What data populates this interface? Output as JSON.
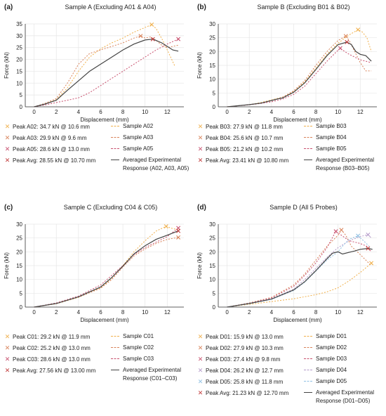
{
  "chart_data": [
    {
      "id": "a",
      "type": "line",
      "panel_label": "(a)",
      "title": "Sample A (Excluding A01 & A04)",
      "xlabel": "Displacement (mm)",
      "ylabel": "Force (kN)",
      "xlim": [
        -0.8,
        13.5
      ],
      "ylim": [
        0,
        35
      ],
      "xticks": [
        0,
        2,
        4,
        6,
        8,
        10,
        12
      ],
      "yticks": [
        0,
        5,
        10,
        15,
        20,
        25,
        30,
        35
      ],
      "series": [
        {
          "name": "Sample A02",
          "color": "#f0b04c",
          "dash": "2,2",
          "x": [
            0,
            1,
            2,
            3,
            4,
            5,
            6,
            7,
            8,
            9,
            10,
            10.6,
            11,
            11.6,
            12.2,
            12.7
          ],
          "y": [
            0,
            1.2,
            3,
            8,
            15,
            21,
            24.5,
            27,
            29,
            31.5,
            33.5,
            34.7,
            33,
            28,
            22,
            17
          ]
        },
        {
          "name": "Sample A03",
          "color": "#d9835a",
          "dash": "2,2",
          "x": [
            0,
            1,
            2,
            3,
            4,
            5,
            6,
            7,
            8,
            9,
            9.6,
            10,
            10.5,
            11,
            11.5,
            12,
            12.5,
            13
          ],
          "y": [
            0,
            1.5,
            3.5,
            10,
            18,
            22.5,
            24,
            25.5,
            27,
            29,
            29.9,
            29,
            29.5,
            28,
            26,
            25,
            25.5,
            26
          ]
        },
        {
          "name": "Sample A05",
          "color": "#c8506e",
          "dash": "2,2",
          "x": [
            0,
            1,
            2,
            3,
            4,
            5,
            6,
            7,
            8,
            9,
            10,
            11,
            12,
            13
          ],
          "y": [
            0,
            0.8,
            1.8,
            2.8,
            3.8,
            6,
            9,
            12,
            15,
            18,
            21,
            24,
            26.5,
            28.6
          ]
        },
        {
          "name": "Averaged Experimental Response (A02, A03, A05)",
          "color": "#444444",
          "dash": "",
          "x": [
            0,
            1,
            2,
            3,
            4,
            5,
            6,
            7,
            8,
            9,
            10,
            10.7,
            11,
            11.5,
            12,
            12.5,
            13
          ],
          "y": [
            0,
            1.2,
            2.8,
            7,
            11,
            15,
            18,
            21,
            24,
            26.5,
            28.2,
            28.55,
            28,
            27,
            25.5,
            24,
            23.5
          ]
        }
      ],
      "peaks": [
        {
          "label": "Peak A02: 34.7 kN @ 10.6 mm",
          "x": 10.6,
          "y": 34.7,
          "color": "#f0b04c"
        },
        {
          "label": "Peak A03: 29.9 kN @ 9.6 mm",
          "x": 9.6,
          "y": 29.9,
          "color": "#d9835a"
        },
        {
          "label": "Peak A05: 28.6 kN @ 13.0 mm",
          "x": 13.0,
          "y": 28.6,
          "color": "#c8506e"
        },
        {
          "label": "Peak Avg: 28.55 kN @ 10.70 mm",
          "x": 10.7,
          "y": 28.55,
          "color": "#c23b3b"
        }
      ],
      "legend_series_labels": [
        [
          "Sample A02"
        ],
        [
          "Sample A03"
        ],
        [
          "Sample A05"
        ],
        [
          "Averaged Experimental",
          "Response (A02, A03, A05)"
        ]
      ]
    },
    {
      "id": "b",
      "type": "line",
      "panel_label": "(b)",
      "title": "Sample B (Excluding B01 & B02)",
      "xlabel": "Displacement (mm)",
      "ylabel": "Force (kN)",
      "xlim": [
        -0.8,
        13.5
      ],
      "ylim": [
        0,
        30
      ],
      "xticks": [
        0,
        2,
        4,
        6,
        8,
        10,
        12
      ],
      "yticks": [
        0,
        5,
        10,
        15,
        20,
        25,
        30
      ],
      "series": [
        {
          "name": "Sample B03",
          "color": "#f0b04c",
          "dash": "2,2",
          "x": [
            0,
            2,
            3,
            4,
            5,
            6,
            7,
            8,
            9,
            10,
            10.5,
            11,
            11.8,
            12.2,
            12.6,
            13
          ],
          "y": [
            0,
            0.8,
            1.5,
            2.5,
            3.5,
            5.5,
            9,
            14,
            19,
            23,
            24.5,
            26,
            27.9,
            27,
            25,
            20
          ]
        },
        {
          "name": "Sample B04",
          "color": "#d9835a",
          "dash": "2,2",
          "x": [
            0,
            2,
            3,
            4,
            5,
            6,
            7,
            8,
            9,
            10,
            10.7,
            11,
            11.5,
            12,
            12.5,
            13
          ],
          "y": [
            0,
            0.8,
            1.3,
            2.2,
            3.5,
            5.8,
            9.5,
            15,
            20,
            24,
            25.6,
            24,
            20,
            16,
            13,
            13
          ]
        },
        {
          "name": "Sample B05",
          "color": "#c8506e",
          "dash": "2,2",
          "x": [
            0,
            2,
            3,
            4,
            5,
            6,
            7,
            8,
            9,
            10,
            10.2,
            10.6,
            11,
            11.5,
            12,
            12.5,
            13
          ],
          "y": [
            0,
            0.7,
            1.2,
            1.8,
            2.8,
            4.5,
            7.5,
            12,
            16.5,
            20.5,
            21.2,
            20,
            19,
            18,
            17,
            16.5,
            16
          ]
        },
        {
          "name": "Averaged Experimental Response (B03–B05)",
          "color": "#444444",
          "dash": "",
          "x": [
            0,
            2,
            3,
            4,
            4.5,
            5,
            6,
            7,
            8,
            9,
            10,
            10.8,
            11.2,
            11.6,
            12,
            12.5,
            13
          ],
          "y": [
            0,
            0.8,
            1.3,
            2.3,
            2.8,
            3.2,
            5.3,
            8.7,
            13.5,
            18.5,
            22.5,
            23.41,
            22.5,
            20,
            19,
            18.5,
            16.5
          ]
        }
      ],
      "peaks": [
        {
          "label": "Peak B03: 27.9 kN @ 11.8 mm",
          "x": 11.8,
          "y": 27.9,
          "color": "#f0b04c"
        },
        {
          "label": "Peak B04: 25.6 kN @ 10.7 mm",
          "x": 10.7,
          "y": 25.6,
          "color": "#d9835a"
        },
        {
          "label": "Peak B05: 21.2 kN @ 10.2 mm",
          "x": 10.2,
          "y": 21.2,
          "color": "#c8506e"
        },
        {
          "label": "Peak Avg: 23.41 kN @ 10.80 mm",
          "x": 10.8,
          "y": 23.41,
          "color": "#c23b3b"
        }
      ],
      "legend_series_labels": [
        [
          "Sample B03"
        ],
        [
          "Sample B04"
        ],
        [
          "Sample B05"
        ],
        [
          "Averaged Experimental",
          "Response (B03–B05)"
        ]
      ]
    },
    {
      "id": "c",
      "type": "line",
      "panel_label": "(c)",
      "title": "Sample C (Excluding C04 & C05)",
      "xlabel": "Displacement (mm)",
      "ylabel": "Force (kN)",
      "xlim": [
        -0.8,
        13.5
      ],
      "ylim": [
        0,
        30
      ],
      "xticks": [
        0,
        2,
        4,
        6,
        8,
        10,
        12
      ],
      "yticks": [
        0,
        5,
        10,
        15,
        20,
        25,
        30
      ],
      "series": [
        {
          "name": "Sample C01",
          "color": "#f0b04c",
          "dash": "2,2",
          "x": [
            0,
            2,
            4,
            6,
            7,
            8,
            9,
            10,
            11,
            11.9,
            12.4,
            13
          ],
          "y": [
            0,
            1.2,
            3.5,
            7,
            10.5,
            15,
            20,
            24,
            27.5,
            29.2,
            28.5,
            28
          ]
        },
        {
          "name": "Sample C02",
          "color": "#d9835a",
          "dash": "2,2",
          "x": [
            0,
            2,
            4,
            6,
            7,
            8,
            9,
            10,
            11,
            12,
            13
          ],
          "y": [
            0,
            1.3,
            3.6,
            6.8,
            10,
            14.5,
            18.5,
            21,
            23,
            24.5,
            25.2
          ]
        },
        {
          "name": "Sample C03",
          "color": "#c8506e",
          "dash": "2,2",
          "x": [
            0,
            2,
            4,
            6,
            7,
            8,
            9,
            10,
            11,
            12,
            13
          ],
          "y": [
            0,
            1.5,
            4,
            8,
            11.5,
            15,
            19,
            21.5,
            23.5,
            25.5,
            28.6
          ]
        },
        {
          "name": "Averaged Experimental Response (C01–C03)",
          "color": "#444444",
          "dash": "",
          "x": [
            0,
            2,
            4,
            6,
            7,
            8,
            9,
            10,
            11,
            12,
            13
          ],
          "y": [
            0,
            1.3,
            3.7,
            7.3,
            10.7,
            14.8,
            19.2,
            22.2,
            24.5,
            26,
            27.56
          ]
        }
      ],
      "peaks": [
        {
          "label": "Peak C01: 29.2 kN @ 11.9 mm",
          "x": 11.9,
          "y": 29.2,
          "color": "#f0b04c"
        },
        {
          "label": "Peak C02: 25.2 kN @ 13.0 mm",
          "x": 13.0,
          "y": 25.2,
          "color": "#d9835a"
        },
        {
          "label": "Peak C03: 28.6 kN @ 13.0 mm",
          "x": 13.0,
          "y": 28.6,
          "color": "#c8506e"
        },
        {
          "label": "Peak Avg: 27.56 kN @ 13.00 mm",
          "x": 13.0,
          "y": 27.56,
          "color": "#c23b3b"
        }
      ],
      "legend_series_labels": [
        [
          "Sample C01"
        ],
        [
          "Sample C02"
        ],
        [
          "Sample C03"
        ],
        [
          "Averaged Experimental",
          "Response (C01–C03)"
        ]
      ]
    },
    {
      "id": "d",
      "type": "line",
      "panel_label": "(d)",
      "title": "Sample D (All 5 Probes)",
      "xlabel": "Displacement (mm)",
      "ylabel": "Force (kN)",
      "xlim": [
        -0.8,
        13.5
      ],
      "ylim": [
        0,
        30
      ],
      "xticks": [
        0,
        2,
        4,
        6,
        8,
        10,
        12
      ],
      "yticks": [
        0,
        5,
        10,
        15,
        20,
        25,
        30
      ],
      "series": [
        {
          "name": "Sample D01",
          "color": "#f0b04c",
          "dash": "2,2",
          "x": [
            0,
            2,
            4,
            6,
            8,
            9,
            10,
            11,
            12,
            13
          ],
          "y": [
            0,
            1,
            2,
            3,
            4.5,
            5.5,
            7,
            9.5,
            12.5,
            15.9
          ]
        },
        {
          "name": "Sample D02",
          "color": "#d9835a",
          "dash": "2,2",
          "x": [
            0,
            2,
            4,
            6,
            7,
            8,
            9,
            10,
            10.3,
            10.7,
            11.2,
            12,
            12.5,
            13
          ],
          "y": [
            0,
            1.5,
            3.5,
            8,
            12,
            17,
            22,
            26,
            27.9,
            26,
            22,
            19,
            17,
            15
          ]
        },
        {
          "name": "Sample D03",
          "color": "#c8506e",
          "dash": "2,2",
          "x": [
            0,
            2,
            4,
            6,
            7,
            8,
            9,
            9.8,
            10.3,
            11,
            12,
            12.6,
            13
          ],
          "y": [
            0,
            1.4,
            3.3,
            7.5,
            11.5,
            16,
            21.5,
            27.4,
            26,
            24,
            23,
            22,
            20
          ]
        },
        {
          "name": "Sample D04",
          "color": "#b49ac9",
          "dash": "2,2",
          "x": [
            0,
            2,
            4,
            6,
            7,
            8,
            9,
            10,
            11,
            12,
            12.7,
            13
          ],
          "y": [
            0,
            1.3,
            3,
            6.5,
            10,
            14,
            18,
            21.5,
            24,
            25.5,
            26.2,
            25
          ]
        },
        {
          "name": "Sample D05",
          "color": "#8fc0e3",
          "dash": "2,2",
          "x": [
            0,
            2,
            4,
            6,
            7,
            8,
            9,
            10,
            10.5,
            11,
            11.8,
            12.3,
            12.8
          ],
          "y": [
            0,
            1.2,
            2.8,
            6,
            9,
            13,
            17,
            20,
            22.5,
            24.5,
            25.8,
            24,
            22
          ]
        },
        {
          "name": "Averaged Experimental Response (D01–D05)",
          "color": "#444444",
          "dash": "",
          "x": [
            0,
            2,
            4,
            6,
            7,
            8,
            9,
            9.5,
            10,
            10.4,
            11,
            11.5,
            12,
            12.7,
            13.1
          ],
          "y": [
            0,
            1.3,
            2.9,
            6.2,
            9.2,
            13.2,
            17.5,
            19.5,
            20,
            19.2,
            19.8,
            20.3,
            20.9,
            21.23,
            20.9
          ]
        }
      ],
      "peaks": [
        {
          "label": "Peak D01: 15.9 kN @ 13.0 mm",
          "x": 13.0,
          "y": 15.9,
          "color": "#f0b04c"
        },
        {
          "label": "Peak D02: 27.9 kN @ 10.3 mm",
          "x": 10.3,
          "y": 27.9,
          "color": "#d9835a"
        },
        {
          "label": "Peak D03: 27.4 kN @ 9.8 mm",
          "x": 9.8,
          "y": 27.4,
          "color": "#c8506e"
        },
        {
          "label": "Peak D04: 26.2 kN @ 12.7 mm",
          "x": 12.7,
          "y": 26.2,
          "color": "#b49ac9"
        },
        {
          "label": "Peak D05: 25.8 kN @ 11.8 mm",
          "x": 11.8,
          "y": 25.8,
          "color": "#8fc0e3"
        },
        {
          "label": "Peak Avg: 21.23 kN @ 12.70 mm",
          "x": 12.7,
          "y": 21.23,
          "color": "#c23b3b"
        }
      ],
      "legend_series_labels": [
        [
          "Sample D01"
        ],
        [
          "Sample D02"
        ],
        [
          "Sample D03"
        ],
        [
          "Sample D04"
        ],
        [
          "Sample D05"
        ],
        [
          "Averaged Experimental",
          "Response (D01–D05)"
        ]
      ]
    }
  ]
}
